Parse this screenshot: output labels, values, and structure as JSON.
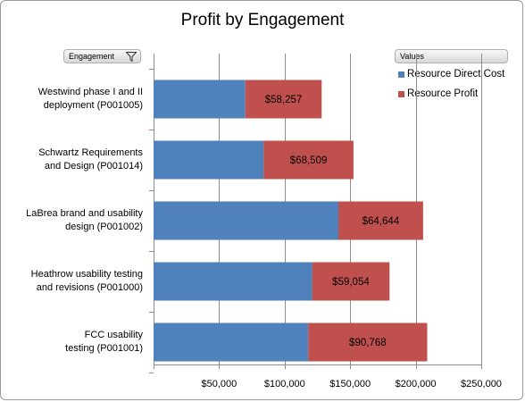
{
  "chart_data": {
    "type": "bar",
    "orientation": "horizontal",
    "stacked": true,
    "title": "Profit by Engagement",
    "xlabel": "",
    "ylabel": "",
    "xlim": [
      0,
      250000
    ],
    "x_ticks": [
      50000,
      100000,
      150000,
      200000,
      250000
    ],
    "x_tick_labels": [
      "$50,000",
      "$100,000",
      "$150,000",
      "$200,000",
      "$250,000"
    ],
    "grid": "vertical",
    "legend_position": "right",
    "filter_field": "Engagement",
    "legend_title": "Values",
    "categories": [
      [
        "Westwind phase I and II",
        "deployment (P001005)"
      ],
      [
        "Schwartz Requirements",
        "and Design (P001014)"
      ],
      [
        "LaBrea brand and usability",
        "design (P001002)"
      ],
      [
        "Heathrow usability testing",
        "and revisions (P001000)"
      ],
      [
        "FCC usability",
        "testing (P001001)"
      ]
    ],
    "series": [
      {
        "name": "Resource Direct Cost",
        "color": "#4f81bd",
        "values": [
          70000,
          84000,
          141000,
          121000,
          118000
        ]
      },
      {
        "name": "Resource Profit",
        "color": "#c0504d",
        "values": [
          58257,
          68509,
          64644,
          59054,
          90768
        ],
        "data_labels": [
          "$58,257",
          "$68,509",
          "$64,644",
          "$59,054",
          "$90,768"
        ]
      }
    ]
  }
}
